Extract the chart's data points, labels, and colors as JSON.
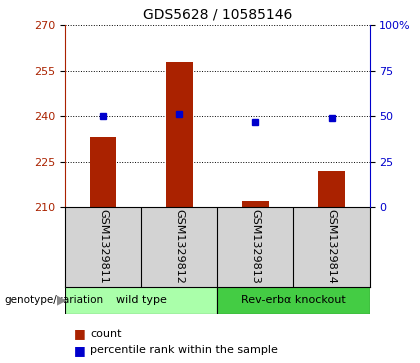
{
  "title": "GDS5628 / 10585146",
  "samples": [
    "GSM1329811",
    "GSM1329812",
    "GSM1329813",
    "GSM1329814"
  ],
  "count_values": [
    233,
    258,
    212,
    222
  ],
  "percentile_values": [
    50,
    51,
    47,
    49
  ],
  "ymin": 210,
  "ymax": 270,
  "yticks": [
    210,
    225,
    240,
    255,
    270
  ],
  "y2min": 0,
  "y2max": 100,
  "y2ticks": [
    0,
    25,
    50,
    75,
    100
  ],
  "bar_color": "#aa2200",
  "dot_color": "#0000cc",
  "bar_width": 0.35,
  "grid_color": "#000000",
  "groups": [
    {
      "label": "wild type",
      "samples": [
        0,
        1
      ],
      "color": "#aaffaa"
    },
    {
      "label": "Rev-erbα knockout",
      "samples": [
        2,
        3
      ],
      "color": "#44cc44"
    }
  ],
  "genotype_label": "genotype/variation",
  "legend_count_label": "count",
  "legend_pct_label": "percentile rank within the sample",
  "title_fontsize": 10,
  "tick_fontsize": 8,
  "sample_fontsize": 8,
  "group_fontsize": 8,
  "legend_fontsize": 8
}
